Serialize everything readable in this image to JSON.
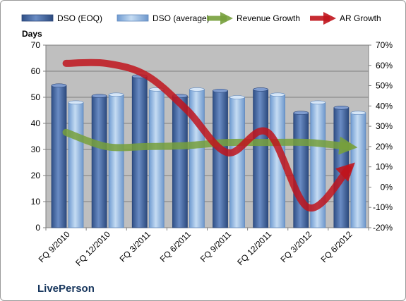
{
  "company": "LivePerson",
  "colors": {
    "dso_eoq": "#4f6fa8",
    "dso_avg": "#8db3e2",
    "revenue_growth": "#77a03c",
    "ar_growth": "#c0141c",
    "plot_bg": "#bfbfbf"
  },
  "chart_data": {
    "type": "bar",
    "categories": [
      "FQ 9/2010",
      "FQ 12/2010",
      "FQ 3/2011",
      "FQ 6/2011",
      "FQ 9/2011",
      "FQ 12/2011",
      "FQ 3/2012",
      "FQ 6/2012"
    ],
    "ylabel": "Days",
    "ylim": [
      0,
      70
    ],
    "yticks": [
      "0",
      "10",
      "20",
      "30",
      "40",
      "50",
      "60",
      "70"
    ],
    "y2lim": [
      -0.2,
      0.7
    ],
    "y2ticks": [
      "-20%",
      "-10%",
      "0%",
      "10%",
      "20%",
      "30%",
      "40%",
      "50%",
      "60%",
      "70%"
    ],
    "legend": [
      "DSO (EOQ)",
      "DSO (average)",
      "Revenue Growth",
      "AR Growth"
    ],
    "legend_position": "top",
    "series": [
      {
        "name": "DSO (EOQ)",
        "type": "bar",
        "axis": "left",
        "values": [
          54.5,
          50.5,
          58,
          50.5,
          52.5,
          53,
          44,
          46
        ]
      },
      {
        "name": "DSO (average)",
        "type": "bar",
        "axis": "left",
        "values": [
          48,
          51,
          53,
          53,
          50,
          51,
          48,
          44
        ]
      },
      {
        "name": "Revenue Growth",
        "type": "line",
        "axis": "right",
        "values": [
          0.27,
          0.2,
          0.2,
          0.205,
          0.22,
          0.22,
          0.22,
          0.2
        ]
      },
      {
        "name": "AR Growth",
        "type": "line",
        "axis": "right",
        "values": [
          0.61,
          0.61,
          0.55,
          0.38,
          0.17,
          0.27,
          -0.1,
          0.09
        ]
      }
    ]
  }
}
